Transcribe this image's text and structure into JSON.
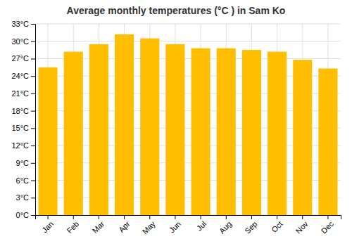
{
  "chart_data": {
    "type": "bar",
    "title": "Average monthly temperatures (°C ) in Sam Ko",
    "categories": [
      "Jan",
      "Feb",
      "Mar",
      "Apr",
      "May",
      "Jun",
      "Jul",
      "Aug",
      "Sep",
      "Oct",
      "Nov",
      "Dec"
    ],
    "values": [
      25.5,
      28.2,
      29.5,
      31.2,
      30.5,
      29.5,
      28.8,
      28.8,
      28.5,
      28.2,
      26.8,
      25.3
    ],
    "color": "#FFBE00",
    "ylim": [
      0,
      33
    ],
    "yticks": [
      {
        "value": 0,
        "label": "0°C"
      },
      {
        "value": 3,
        "label": "3°C"
      },
      {
        "value": 6,
        "label": "6°C"
      },
      {
        "value": 9,
        "label": "9°C"
      },
      {
        "value": 12,
        "label": "12°C"
      },
      {
        "value": 15,
        "label": "15°C"
      },
      {
        "value": 18,
        "label": "18°C"
      },
      {
        "value": 21,
        "label": "21°C"
      },
      {
        "value": 24,
        "label": "24°C"
      },
      {
        "value": 27,
        "label": "27°C"
      },
      {
        "value": 30,
        "label": "30°C"
      },
      {
        "value": 33,
        "label": "33°C"
      }
    ],
    "grid": true
  }
}
